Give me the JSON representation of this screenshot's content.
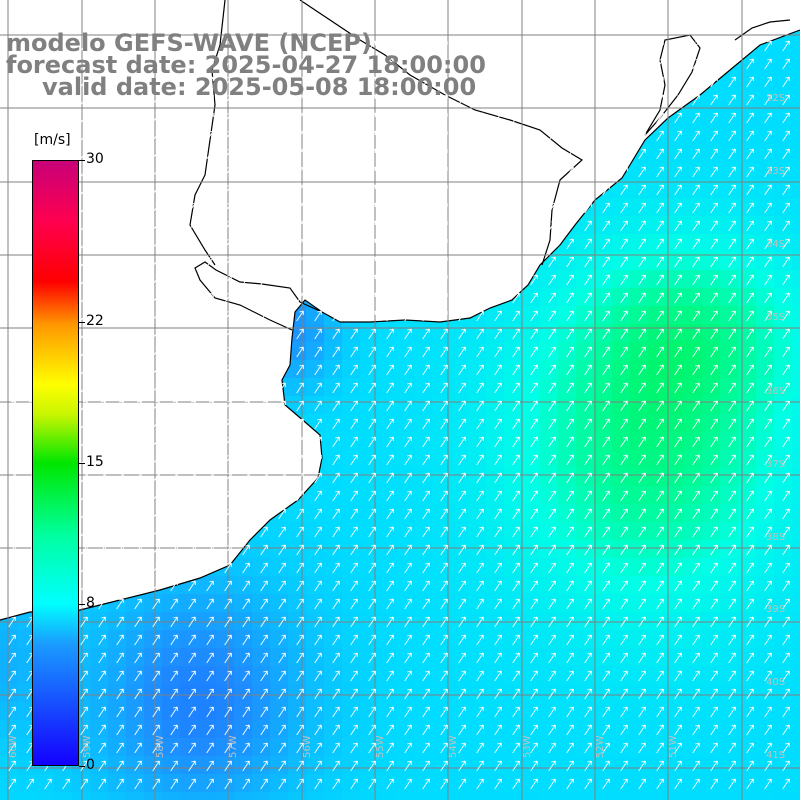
{
  "title": {
    "line1": "modelo GEFS-WAVE (NCEP)",
    "line2": "forecast date: 2025-04-27 18:00:00",
    "line3": "valid date: 2025-05-08 18:00:00"
  },
  "colorbar": {
    "unit": "[m/s]",
    "tick_labels": [
      "30",
      "22",
      "15",
      "8",
      "0"
    ],
    "tick_values": [
      30,
      22,
      15,
      8,
      0
    ],
    "min": 0,
    "max": 30,
    "colors": [
      "#1400ff",
      "#1a9bff",
      "#00ffff",
      "#00ffa0",
      "#00e600",
      "#c8f500",
      "#ffff00",
      "#ff9600",
      "#ff0000",
      "#ff0050",
      "#c80078"
    ]
  },
  "map": {
    "lat_labels": [
      "32S",
      "33S",
      "34S",
      "35S",
      "36S",
      "37S",
      "38S",
      "39S",
      "40S",
      "41S"
    ],
    "lon_labels": [
      "60W",
      "59W",
      "58W",
      "57W",
      "56W",
      "55W",
      "54W",
      "53W",
      "52W",
      "51W"
    ],
    "land_color": "#ffffff",
    "grid_color": "#808080",
    "coast_color": "#000000",
    "arrow_color": "#ffffff",
    "field_description": "wind speed and direction"
  }
}
